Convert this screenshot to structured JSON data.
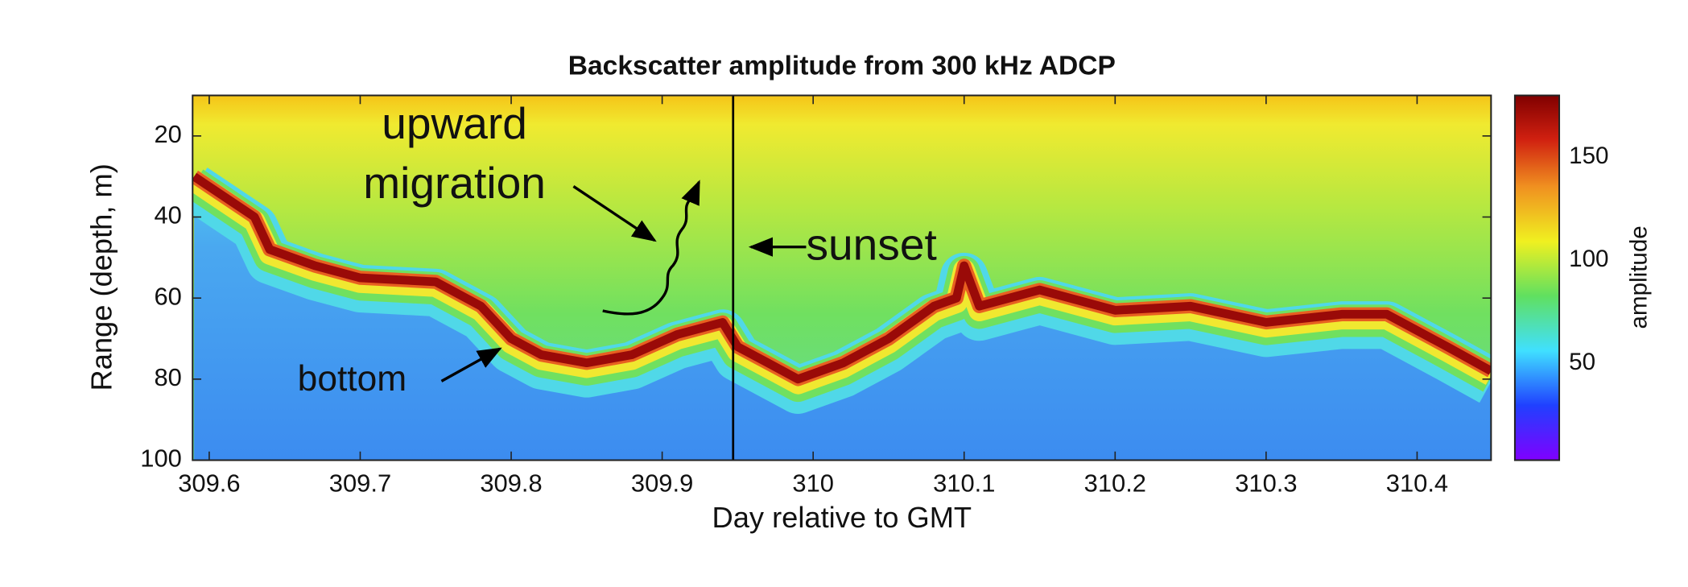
{
  "chart_data": {
    "type": "heatmap-trace",
    "title": "Backscatter amplitude from 300 kHz ADCP",
    "x_label": "Day relative to GMT",
    "y_label": "Range (depth, m)",
    "colorbar_label": "amplitude",
    "xlim": [
      309.589,
      310.449
    ],
    "xticks": [
      309.6,
      309.7,
      309.8,
      309.9,
      310,
      310.1,
      310.2,
      310.3,
      310.4
    ],
    "ylim": [
      10,
      100
    ],
    "y_reversed": true,
    "yticks": [
      20,
      40,
      60,
      80,
      100
    ],
    "clim": [
      3,
      180
    ],
    "cticks": [
      50,
      100,
      150
    ],
    "x": [
      309.59,
      309.61,
      309.63,
      309.64,
      309.67,
      309.7,
      309.75,
      309.78,
      309.8,
      309.82,
      309.85,
      309.88,
      309.91,
      309.94,
      309.95,
      309.97,
      309.99,
      310.02,
      310.05,
      310.08,
      310.095,
      310.1,
      310.11,
      310.15,
      310.2,
      310.25,
      310.3,
      310.35,
      310.38,
      310.42,
      310.449
    ],
    "values": [
      30,
      35,
      40,
      48,
      52,
      55,
      56,
      62,
      70,
      74,
      76,
      74,
      69,
      66,
      72,
      76,
      80,
      76,
      70,
      62,
      60,
      52,
      62,
      58,
      63,
      62,
      66,
      64,
      64,
      72,
      78
    ],
    "sunset_x": 309.947,
    "annotations": {
      "migration": [
        "upward",
        "migration"
      ],
      "bottom": "bottom",
      "sunset": "sunset"
    }
  }
}
